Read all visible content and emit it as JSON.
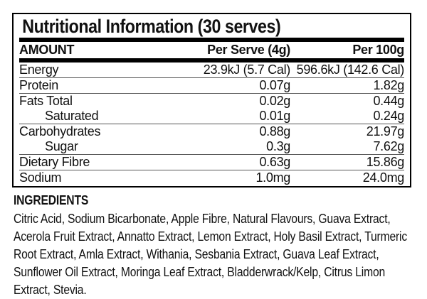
{
  "label": {
    "title": "Nutritional Information (30 serves)",
    "header": {
      "amount": "AMOUNT",
      "per_serve": "Per Serve (4g)",
      "per_100g": "Per 100g"
    },
    "rows": [
      {
        "name": "Energy",
        "per_serve": "23.9kJ (5.7 Cal)",
        "per_100g": "596.6kJ (142.6 Cal)",
        "indent": false,
        "separator_above": false
      },
      {
        "name": "Protein",
        "per_serve": "0.07g",
        "per_100g": "1.82g",
        "indent": false,
        "separator_above": true
      },
      {
        "name": "Fats Total",
        "per_serve": "0.02g",
        "per_100g": "0.44g",
        "indent": false,
        "separator_above": true
      },
      {
        "name": "Saturated",
        "per_serve": "0.01g",
        "per_100g": "0.24g",
        "indent": true,
        "separator_above": false
      },
      {
        "name": "Carbohydrates",
        "per_serve": "0.88g",
        "per_100g": "21.97g",
        "indent": false,
        "separator_above": true
      },
      {
        "name": "Sugar",
        "per_serve": "0.3g",
        "per_100g": "7.62g",
        "indent": true,
        "separator_above": false
      },
      {
        "name": "Dietary Fibre",
        "per_serve": "0.63g",
        "per_100g": "15.86g",
        "indent": false,
        "separator_above": true
      },
      {
        "name": "Sodium",
        "per_serve": "1.0mg",
        "per_100g": "24.0mg",
        "indent": false,
        "separator_above": true
      }
    ]
  },
  "ingredients": {
    "heading": "INGREDIENTS",
    "text": "Citric Acid, Sodium Bicarbonate, Apple Fibre, Natural Flavours, Guava Extract, Acerola Fruit Extract, Annatto Extract, Lemon Extract, Holy Basil Extract, Turmeric Root Extract, Amla Extract, Withania, Sesbania Extract, Guava Leaf Extract, Sunflower Oil Extract, Moringa Leaf Extract, Bladderwrack/Kelp, Citrus Limon Extract, Stevia."
  },
  "colors": {
    "text": "#111111",
    "border": "#000000",
    "separator": "#555555",
    "background": "#ffffff"
  }
}
